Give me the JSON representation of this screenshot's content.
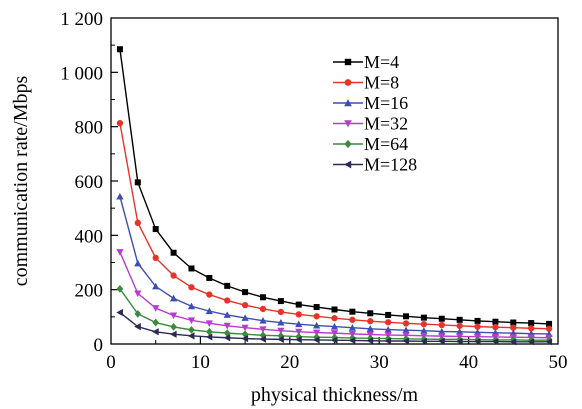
{
  "chart_data": {
    "type": "line",
    "title": "",
    "xlabel": "physical thickness/m",
    "ylabel": "communication rate/Mbps",
    "xlim": [
      0,
      50
    ],
    "ylim": [
      0,
      1200
    ],
    "xticks": [
      0,
      10,
      20,
      30,
      40,
      50
    ],
    "xtick_labels": [
      "0",
      "10",
      "20",
      "30",
      "40",
      "50"
    ],
    "yticks": [
      0,
      200,
      400,
      600,
      800,
      1000,
      1200
    ],
    "ytick_labels": [
      "0",
      "200",
      "400",
      "600",
      "800",
      "1 000",
      "1 200"
    ],
    "grid": false,
    "legend_position": "top-right",
    "x": [
      1,
      3,
      5,
      7,
      9,
      11,
      13,
      15,
      17,
      19,
      21,
      23,
      25,
      27,
      29,
      31,
      33,
      35,
      37,
      39,
      41,
      43,
      45,
      47,
      49
    ],
    "series": [
      {
        "name": "M=4",
        "color": "#000000",
        "marker": "square",
        "values": [
          1085,
          595,
          423,
          336,
          278,
          243,
          214,
          191,
          172,
          158,
          145,
          136,
          127,
          119,
          113,
          107,
          102,
          97,
          93,
          89,
          85,
          82,
          79,
          77,
          74
        ]
      },
      {
        "name": "M=8",
        "color": "#e8332a",
        "marker": "circle",
        "values": [
          813,
          446,
          317,
          252,
          209,
          182,
          160,
          143,
          129,
          118,
          109,
          102,
          95,
          89,
          84,
          80,
          76,
          73,
          70,
          67,
          64,
          62,
          60,
          58,
          56
        ]
      },
      {
        "name": "M=16",
        "color": "#3b4fb0",
        "marker": "triangle-up",
        "values": [
          543,
          297,
          212,
          168,
          139,
          121,
          107,
          96,
          86,
          79,
          73,
          68,
          64,
          60,
          56,
          53,
          51,
          49,
          46,
          45,
          43,
          41,
          40,
          38,
          37
        ]
      },
      {
        "name": "M=32",
        "color": "#b93ad0",
        "marker": "triangle-down",
        "values": [
          338,
          186,
          132,
          105,
          87,
          76,
          67,
          60,
          54,
          49,
          45,
          42,
          40,
          37,
          35,
          33,
          32,
          30,
          29,
          28,
          27,
          26,
          25,
          24,
          23
        ]
      },
      {
        "name": "M=64",
        "color": "#3a8a3a",
        "marker": "diamond",
        "values": [
          203,
          111,
          79,
          63,
          52,
          45,
          40,
          36,
          32,
          30,
          27,
          25,
          24,
          22,
          21,
          20,
          19,
          18,
          17,
          17,
          16,
          15,
          15,
          14,
          14
        ]
      },
      {
        "name": "M=128",
        "color": "#2a2a55",
        "marker": "triangle-left",
        "values": [
          116,
          64,
          45,
          36,
          30,
          26,
          23,
          20,
          18,
          17,
          16,
          15,
          14,
          13,
          12,
          11,
          11,
          10,
          10,
          9,
          9,
          9,
          8,
          8,
          8
        ]
      }
    ]
  }
}
